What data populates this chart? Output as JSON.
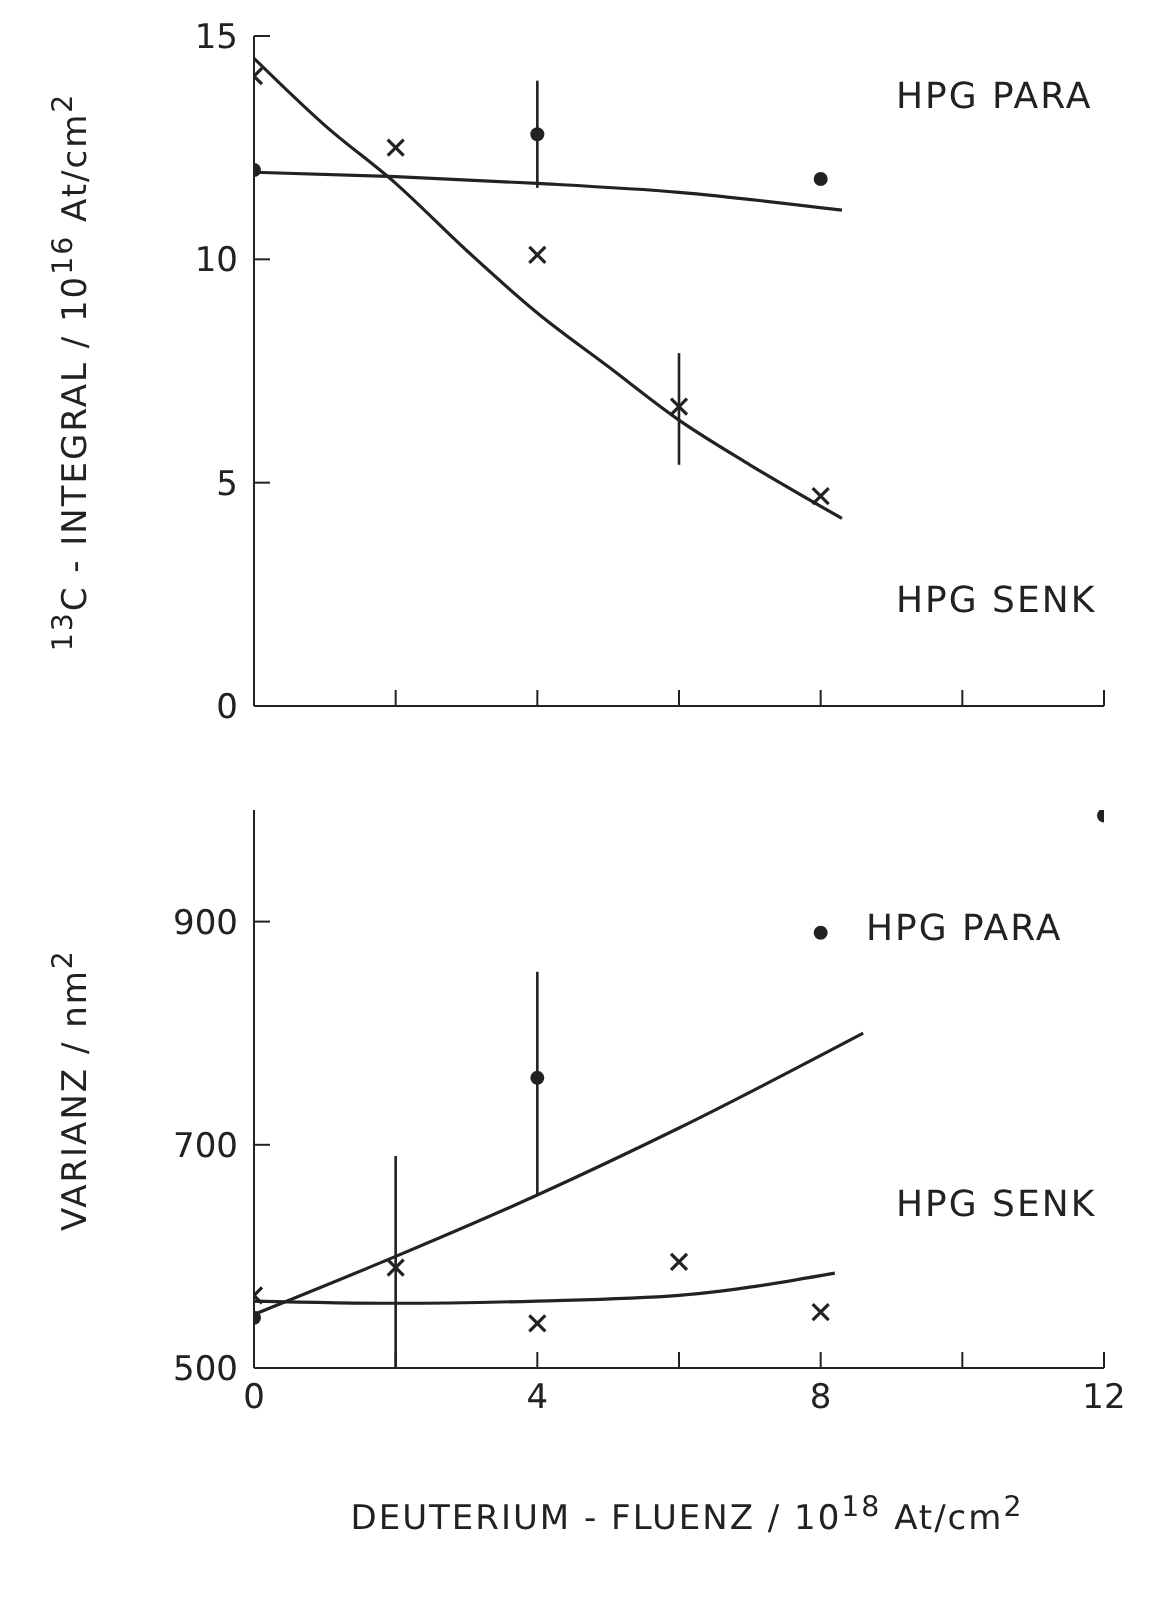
{
  "chart_data": [
    {
      "type": "scatter",
      "ylabel": "$^{13}$C - INTEGRAL / 10$^{16}$ At/cm$^{2}$",
      "xlim": [
        0,
        12
      ],
      "xticks": [
        0,
        {
          "value": 2,
          "label": null
        },
        4,
        {
          "value": 6,
          "label": null
        },
        8,
        {
          "value": 10,
          "label": null
        },
        12
      ],
      "ylim": [
        0,
        15
      ],
      "yticks": [
        0,
        5,
        10,
        15
      ],
      "tick_labels": "y",
      "grid": false,
      "legend": false,
      "series": [
        {
          "name": "HPG PARA",
          "marker": "circle",
          "color": "#222222",
          "x": [
            0,
            4,
            8
          ],
          "values": [
            12.0,
            12.8,
            11.8
          ],
          "errors": [
            null,
            [
              11.6,
              14.0
            ],
            null
          ]
        },
        {
          "name": "HPG SENK",
          "marker": "cross",
          "color": "#222222",
          "x": [
            0,
            2,
            4,
            6,
            8
          ],
          "values": [
            14.1,
            12.5,
            10.1,
            6.7,
            4.7
          ],
          "errors": [
            null,
            null,
            null,
            [
              5.4,
              7.9
            ],
            null
          ]
        },
        {
          "type": "line",
          "marker": "none",
          "line_style": "solid",
          "color": "#222222",
          "x": [
            0,
            2,
            4,
            6,
            8.3
          ],
          "values": [
            11.95,
            11.85,
            11.7,
            11.5,
            11.1
          ]
        },
        {
          "type": "line",
          "marker": "none",
          "line_style": "solid",
          "color": "#222222",
          "x": [
            0,
            1,
            2,
            3,
            4,
            5,
            6,
            7,
            8.3
          ],
          "values": [
            14.5,
            13.0,
            11.7,
            10.2,
            8.8,
            7.6,
            6.4,
            5.4,
            4.2
          ]
        }
      ]
    },
    {
      "type": "scatter",
      "xlabel": "DEUTERIUM - FLUENZ / 10$^{18}$ At/cm$^{2}$",
      "ylabel": "VARIANZ / nm$^{2}$",
      "xlim": [
        0,
        12
      ],
      "xticks": [
        0,
        {
          "value": 2,
          "label": null
        },
        4,
        {
          "value": 6,
          "label": null
        },
        8,
        {
          "value": 10,
          "label": null
        },
        12
      ],
      "ylim": [
        500,
        1000
      ],
      "yticks": [
        500,
        700,
        900
      ],
      "grid": false,
      "legend": false,
      "series": [
        {
          "name": "HPG PARA",
          "marker": "circle",
          "color": "#222222",
          "x": [
            0,
            4,
            8,
            12
          ],
          "values": [
            545,
            760,
            890,
            995
          ],
          "errors": [
            null,
            [
              655,
              855
            ],
            null,
            null
          ]
        },
        {
          "name": "HPG SENK",
          "marker": "cross",
          "color": "#222222",
          "x": [
            0,
            2,
            4,
            6,
            8
          ],
          "values": [
            565,
            590,
            540,
            595,
            550
          ],
          "errors": [
            null,
            [
              500,
              690
            ],
            null,
            null,
            null
          ]
        },
        {
          "type": "line",
          "marker": "none",
          "line_style": "solid",
          "color": "#222222",
          "x": [
            0,
            2,
            4,
            6,
            8.6
          ],
          "values": [
            548,
            600,
            655,
            715,
            800
          ]
        },
        {
          "type": "line",
          "marker": "none",
          "line_style": "solid",
          "color": "#222222",
          "x": [
            0,
            2,
            4,
            6,
            8.2
          ],
          "values": [
            560,
            558,
            560,
            565,
            585
          ]
        }
      ]
    }
  ]
}
